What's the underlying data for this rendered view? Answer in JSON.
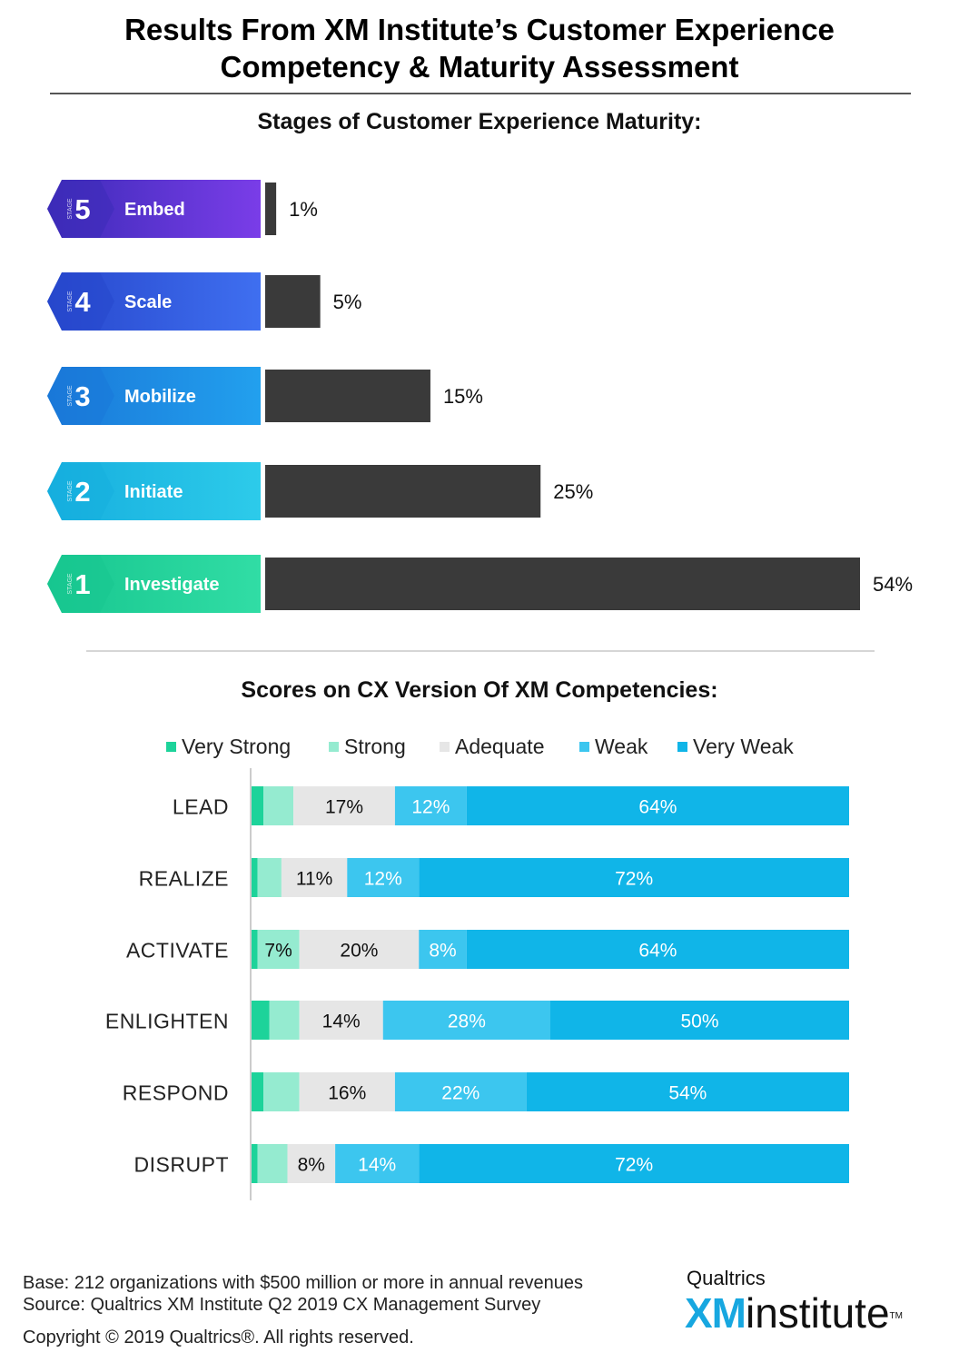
{
  "title": {
    "line1": "Results From XM Institute’s Customer Experience",
    "line2": "Competency & Maturity Assessment"
  },
  "colors": {
    "bar_dark": "#3a3a3a",
    "stage5": [
      "#3c2bb8",
      "#7a3de8"
    ],
    "stage4": [
      "#2747cc",
      "#3f6ff0"
    ],
    "stage3": [
      "#1a78d8",
      "#22a0ee"
    ],
    "stage2": [
      "#16aede",
      "#2dcbea"
    ],
    "stage1": [
      "#17c68f",
      "#31dda5"
    ],
    "very_strong": "#1dd39a",
    "strong": "#95ebd0",
    "adequate": "#e6e6e6",
    "weak": "#3cc6ef",
    "very_weak": "#10b5e8"
  },
  "chart_data": [
    {
      "type": "bar",
      "title": "Stages of Customer Experience Maturity:",
      "stage_tag": "STAGE",
      "categories": [
        {
          "stage": "5",
          "name": "Embed"
        },
        {
          "stage": "4",
          "name": "Scale"
        },
        {
          "stage": "3",
          "name": "Mobilize"
        },
        {
          "stage": "2",
          "name": "Initiate"
        },
        {
          "stage": "1",
          "name": "Investigate"
        }
      ],
      "values": [
        1,
        5,
        15,
        25,
        54
      ],
      "labels": [
        "1%",
        "5%",
        "15%",
        "25%",
        "54%"
      ],
      "xlim": [
        0,
        54
      ]
    },
    {
      "type": "bar",
      "stacked": true,
      "orientation": "horizontal",
      "title": "Scores on CX Version Of XM Competencies:",
      "legend_position": "top",
      "categories": [
        "LEAD",
        "REALIZE",
        "ACTIVATE",
        "ENLIGHTEN",
        "RESPOND",
        "DISRUPT"
      ],
      "series": [
        {
          "name": "Very Strong",
          "values": [
            2,
            1,
            1,
            3,
            2,
            1
          ],
          "labels": [
            "",
            "",
            "",
            "",
            "",
            ""
          ]
        },
        {
          "name": "Strong",
          "values": [
            5,
            4,
            7,
            5,
            6,
            5
          ],
          "labels": [
            "",
            "",
            "7%",
            "",
            "",
            ""
          ]
        },
        {
          "name": "Adequate",
          "values": [
            17,
            11,
            20,
            14,
            16,
            8
          ],
          "labels": [
            "17%",
            "11%",
            "20%",
            "14%",
            "16%",
            "8%"
          ]
        },
        {
          "name": "Weak",
          "values": [
            12,
            12,
            8,
            28,
            22,
            14
          ],
          "labels": [
            "12%",
            "12%",
            "8%",
            "28%",
            "22%",
            "14%"
          ]
        },
        {
          "name": "Very Weak",
          "values": [
            64,
            72,
            64,
            50,
            54,
            72
          ],
          "labels": [
            "64%",
            "72%",
            "64%",
            "50%",
            "54%",
            "72%"
          ]
        }
      ],
      "xlim": [
        0,
        100
      ]
    }
  ],
  "footer": {
    "base": "Base: 212 organizations with $500 million or more in annual revenues",
    "source": "Source: Qualtrics XM Institute Q2 2019 CX Management Survey",
    "copyright": "Copyright © 2019 Qualtrics®.  All rights reserved."
  },
  "brand": {
    "company": "Qualtrics",
    "xm": "XM",
    "institute": "institute",
    "tm": "TM"
  }
}
